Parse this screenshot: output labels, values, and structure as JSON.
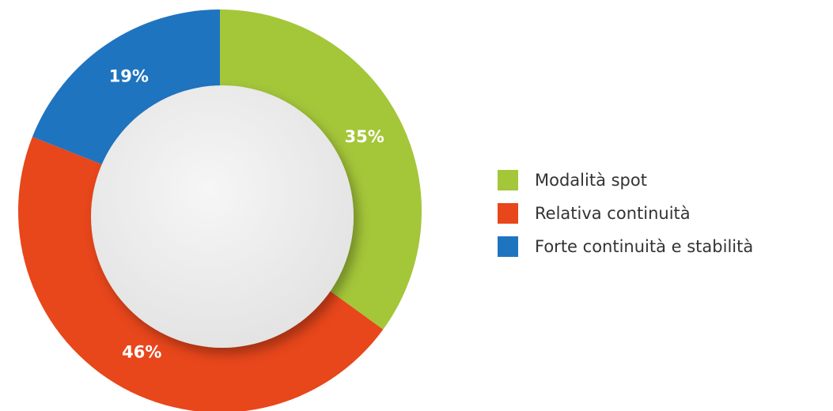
{
  "chart_data": {
    "type": "pie",
    "categories": [
      "Modalità spot",
      "Relativa continuità",
      "Forte continuità e stabilità"
    ],
    "values": [
      35,
      46,
      19
    ],
    "value_labels": [
      "35%",
      "46%",
      "19%"
    ],
    "colors": [
      "#a4c639",
      "#e8461b",
      "#1f74c0"
    ]
  }
}
